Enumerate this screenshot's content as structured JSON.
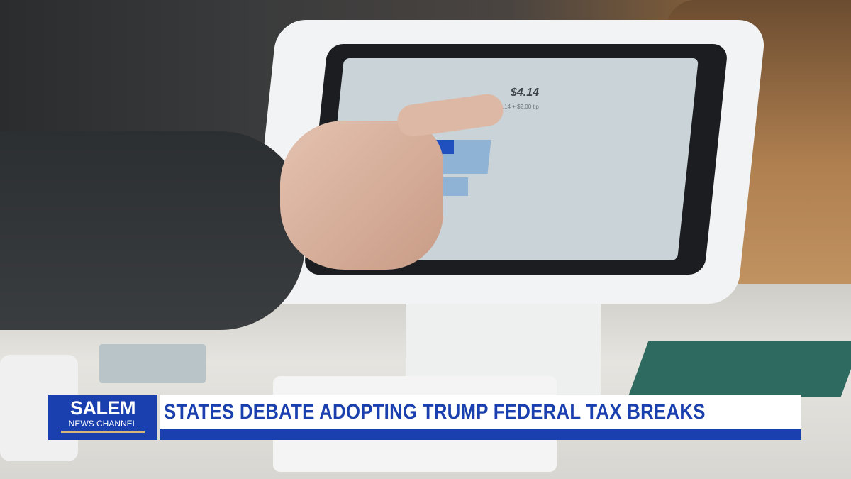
{
  "chyron": {
    "logo_line1": "SALEM",
    "logo_line2": "NEWS CHANNEL",
    "headline": "STATES DEBATE ADOPTING TRUMP FEDERAL TAX BREAKS"
  },
  "tablet_screen": {
    "total": "$4.14",
    "breakdown": "$2.14 + $2.00 tip"
  },
  "colors": {
    "brand_blue": "#1a3fae",
    "accent_gold": "#d8b57a"
  }
}
